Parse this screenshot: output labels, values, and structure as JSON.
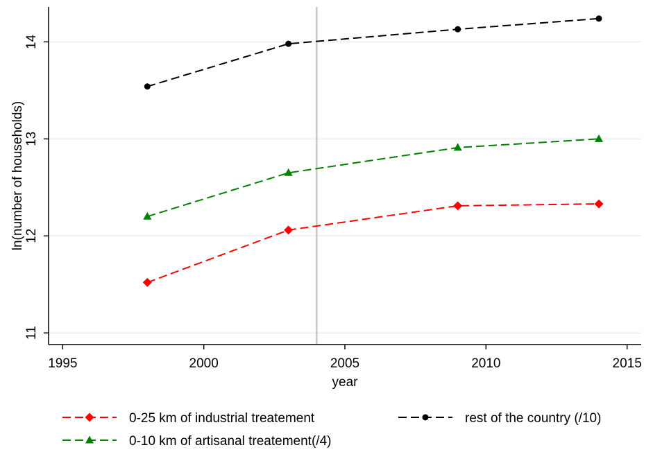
{
  "chart_data": {
    "type": "line",
    "xlabel": "year",
    "ylabel": "ln(number of households)",
    "xlim": [
      1994.5,
      2015.5
    ],
    "ylim": [
      10.88,
      14.36
    ],
    "x_ticks": [
      1995,
      2000,
      2005,
      2010,
      2015
    ],
    "y_ticks": [
      11,
      12,
      13,
      14
    ],
    "grid": "horizontal",
    "reference_line_x": 2004,
    "legend_position": "bottom",
    "series": [
      {
        "name": "0-25 km of industrial treatement",
        "color": "#ff0000",
        "marker": "diamond",
        "line_style": "dashed",
        "x": [
          1998,
          2003,
          2009,
          2014
        ],
        "values": [
          11.52,
          12.06,
          12.31,
          12.33
        ]
      },
      {
        "name": "rest of the country (/10)",
        "color": "#000000",
        "marker": "circle",
        "line_style": "dashed",
        "x": [
          1998,
          2003,
          2009,
          2014
        ],
        "values": [
          13.54,
          13.98,
          14.13,
          14.24
        ]
      },
      {
        "name": "0-10 km of artisanal treatement(/4)",
        "color": "#008000",
        "marker": "triangle",
        "line_style": "dashed",
        "x": [
          1998,
          2003,
          2009,
          2014
        ],
        "values": [
          12.2,
          12.65,
          12.91,
          13.0
        ]
      }
    ]
  }
}
